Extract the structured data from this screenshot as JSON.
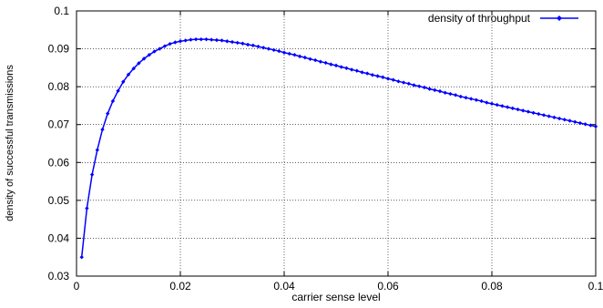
{
  "chart_data": {
    "type": "line",
    "title": "",
    "xlabel": "carrier sense level",
    "ylabel": "density of successful transmissions",
    "xlim": [
      0,
      0.1
    ],
    "ylim": [
      0.03,
      0.1
    ],
    "x_ticks": [
      "0",
      "0.02",
      "0.04",
      "0.06",
      "0.08",
      "0.1"
    ],
    "y_ticks": [
      "0.03",
      "0.04",
      "0.05",
      "0.06",
      "0.07",
      "0.08",
      "0.09",
      "0.1"
    ],
    "grid": true,
    "legend_position": "top-right",
    "series": [
      {
        "name": "density of throughput",
        "color": "#0000ff",
        "marker": "diamond",
        "x": [
          0.001,
          0.002,
          0.003,
          0.004,
          0.005,
          0.006,
          0.007,
          0.008,
          0.009,
          0.01,
          0.011,
          0.012,
          0.013,
          0.014,
          0.015,
          0.016,
          0.017,
          0.018,
          0.019,
          0.02,
          0.021,
          0.022,
          0.023,
          0.024,
          0.025,
          0.026,
          0.027,
          0.028,
          0.029,
          0.03,
          0.031,
          0.032,
          0.033,
          0.034,
          0.035,
          0.036,
          0.037,
          0.038,
          0.039,
          0.04,
          0.041,
          0.042,
          0.043,
          0.044,
          0.045,
          0.046,
          0.047,
          0.048,
          0.049,
          0.05,
          0.051,
          0.052,
          0.053,
          0.054,
          0.055,
          0.056,
          0.057,
          0.058,
          0.059,
          0.06,
          0.061,
          0.062,
          0.063,
          0.064,
          0.065,
          0.066,
          0.067,
          0.068,
          0.069,
          0.07,
          0.071,
          0.072,
          0.073,
          0.074,
          0.075,
          0.076,
          0.077,
          0.078,
          0.079,
          0.08,
          0.081,
          0.082,
          0.083,
          0.084,
          0.085,
          0.086,
          0.087,
          0.088,
          0.089,
          0.09,
          0.091,
          0.092,
          0.093,
          0.094,
          0.095,
          0.096,
          0.097,
          0.098,
          0.099,
          0.1
        ],
        "y": [
          0.035,
          0.0479,
          0.0568,
          0.0633,
          0.0687,
          0.0729,
          0.0762,
          0.0789,
          0.0813,
          0.0832,
          0.0848,
          0.0862,
          0.0874,
          0.0884,
          0.0893,
          0.09,
          0.0907,
          0.0913,
          0.0917,
          0.092,
          0.0922,
          0.0924,
          0.0925,
          0.0925,
          0.0925,
          0.0924,
          0.0923,
          0.0922,
          0.092,
          0.0918,
          0.0916,
          0.0914,
          0.0911,
          0.0909,
          0.0906,
          0.0903,
          0.09,
          0.0897,
          0.0894,
          0.089,
          0.0887,
          0.0884,
          0.088,
          0.0877,
          0.0873,
          0.087,
          0.0866,
          0.0863,
          0.0859,
          0.0856,
          0.0852,
          0.0849,
          0.0845,
          0.0842,
          0.0838,
          0.0835,
          0.0831,
          0.0828,
          0.0825,
          0.0821,
          0.0818,
          0.0814,
          0.0811,
          0.0808,
          0.0804,
          0.0801,
          0.0798,
          0.0794,
          0.0791,
          0.0788,
          0.0784,
          0.0781,
          0.0778,
          0.0774,
          0.0771,
          0.0768,
          0.0765,
          0.0762,
          0.0758,
          0.0755,
          0.0752,
          0.0749,
          0.0746,
          0.0743,
          0.074,
          0.0737,
          0.0734,
          0.0731,
          0.0728,
          0.0725,
          0.0722,
          0.0719,
          0.0716,
          0.0713,
          0.071,
          0.0707,
          0.0704,
          0.0701,
          0.0698,
          0.0695
        ]
      }
    ]
  }
}
